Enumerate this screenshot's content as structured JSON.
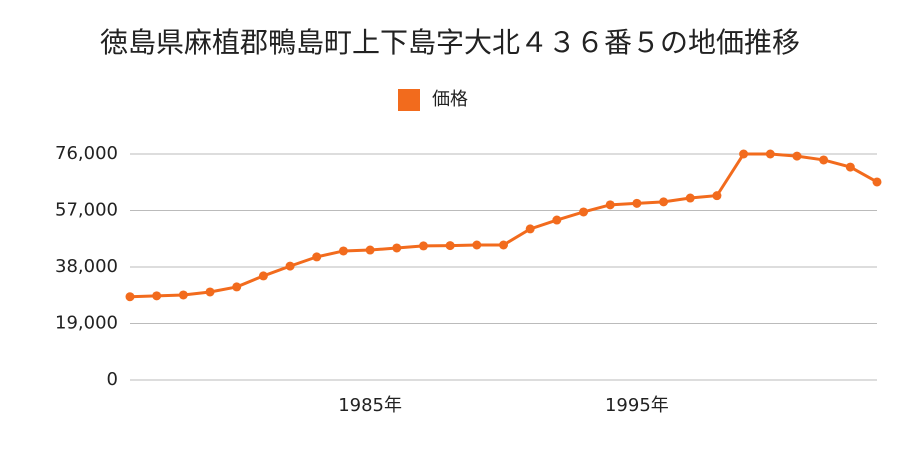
{
  "chart_data": {
    "type": "line",
    "title": "徳島県麻植郡鴨島町上下島字大北４３６番５の地価推移",
    "categories": [
      null,
      null,
      null,
      null,
      null,
      null,
      null,
      null,
      null,
      "1985年",
      null,
      null,
      null,
      null,
      null,
      null,
      null,
      null,
      null,
      "1995年",
      null,
      null,
      null,
      null,
      null,
      null,
      null,
      null,
      null
    ],
    "series": [
      {
        "name": "価格",
        "color": "#f26b1d",
        "values": [
          28000,
          28300,
          28600,
          29600,
          31300,
          35000,
          38300,
          41400,
          43400,
          43700,
          44400,
          45100,
          45200,
          45400,
          45400,
          50800,
          53800,
          56500,
          58900,
          59400,
          59900,
          61200,
          62000,
          76000,
          76000,
          75300,
          74000,
          71600,
          66600
        ]
      }
    ],
    "ylim": [
      0,
      76000
    ],
    "yticks": [
      0,
      {
        "value": 19000,
        "label": "19,000"
      },
      {
        "value": 38000,
        "label": "38,000"
      },
      {
        "value": 57000,
        "label": "57,000"
      },
      {
        "value": 76000,
        "label": "76,000"
      }
    ],
    "grid": true,
    "legend": "top"
  }
}
